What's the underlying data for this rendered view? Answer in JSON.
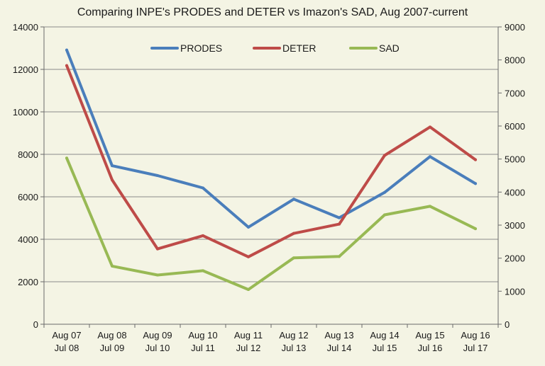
{
  "chart_data": {
    "type": "line",
    "title": "Comparing INPE's PRODES and DETER vs Imazon's SAD, Aug 2007-current",
    "categories": [
      [
        "Aug 07",
        "Jul 08"
      ],
      [
        "Aug 08",
        "Jul 09"
      ],
      [
        "Aug 09",
        "Jul 10"
      ],
      [
        "Aug 10",
        "Jul 11"
      ],
      [
        "Aug 11",
        "Jul 12"
      ],
      [
        "Aug 12",
        "Jul 13"
      ],
      [
        "Aug 13",
        "Jul 14"
      ],
      [
        "Aug 14",
        "Jul 15"
      ],
      [
        "Aug 15",
        "Jul 16"
      ],
      [
        "Aug 16",
        "Jul 17"
      ]
    ],
    "left_axis": {
      "ylim": [
        0,
        14000
      ],
      "ticks": [
        0,
        2000,
        4000,
        6000,
        8000,
        10000,
        12000,
        14000
      ]
    },
    "right_axis": {
      "ylim": [
        0,
        9000
      ],
      "ticks": [
        0,
        1000,
        2000,
        3000,
        4000,
        5000,
        6000,
        7000,
        8000,
        9000
      ]
    },
    "grid": true,
    "legend_position": "top",
    "series": [
      {
        "name": "PRODES",
        "color": "#4a7ebb",
        "axis": "left",
        "values": [
          12911,
          7464,
          7000,
          6418,
          4571,
          5891,
          5012,
          6207,
          7893,
          6624
        ]
      },
      {
        "name": "DETER",
        "color": "#be4b48",
        "axis": "right",
        "values": [
          7830,
          4370,
          2280,
          2680,
          2040,
          2750,
          3030,
          5110,
          5970,
          4980
        ]
      },
      {
        "name": "SAD",
        "color": "#98b954",
        "axis": "right",
        "values": [
          5030,
          1760,
          1490,
          1620,
          1050,
          2010,
          2050,
          3310,
          3570,
          2890
        ]
      }
    ]
  }
}
